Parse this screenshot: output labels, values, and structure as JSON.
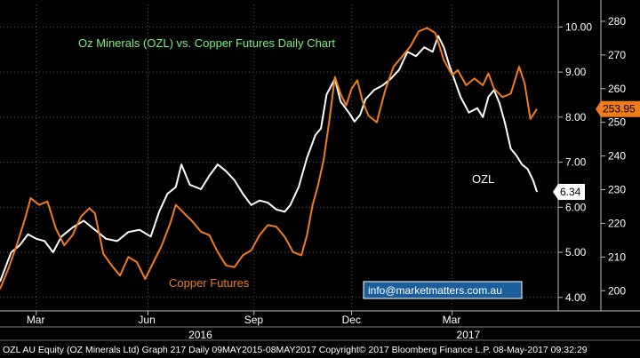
{
  "chart_data": {
    "type": "line",
    "title": "Oz Minerals (OZL) vs. Copper Futures Daily Chart",
    "left_axis": {
      "ticks": [
        "4.00",
        "5.00",
        "6.00",
        "7.00",
        "8.00",
        "9.00",
        "10.00"
      ],
      "ylim": [
        3.7,
        10.5
      ]
    },
    "right_axis": {
      "ticks": [
        "200",
        "210",
        "220",
        "230",
        "240",
        "250",
        "260",
        "270",
        "280"
      ],
      "ylim": [
        194,
        285
      ]
    },
    "x_ticks": [
      {
        "label": "Mar",
        "pos": 0.065
      },
      {
        "label": "Jun",
        "pos": 0.265
      },
      {
        "label": "Sep",
        "pos": 0.455
      },
      {
        "label": "Dec",
        "pos": 0.63
      },
      {
        "label": "Mar",
        "pos": 0.81
      }
    ],
    "year_labels": [
      {
        "label": "2016",
        "pos": 0.36
      },
      {
        "label": "2017",
        "pos": 0.84
      }
    ],
    "series": [
      {
        "name": "OZL",
        "color": "#ffffff",
        "axis": "left",
        "last_value": "6.34",
        "points": [
          [
            0.0,
            4.35
          ],
          [
            0.02,
            5.0
          ],
          [
            0.035,
            5.15
          ],
          [
            0.05,
            5.4
          ],
          [
            0.065,
            5.3
          ],
          [
            0.08,
            5.25
          ],
          [
            0.095,
            5.0
          ],
          [
            0.11,
            5.35
          ],
          [
            0.13,
            5.55
          ],
          [
            0.15,
            5.7
          ],
          [
            0.17,
            5.5
          ],
          [
            0.19,
            5.3
          ],
          [
            0.21,
            5.25
          ],
          [
            0.23,
            5.45
          ],
          [
            0.25,
            5.5
          ],
          [
            0.27,
            5.35
          ],
          [
            0.285,
            5.9
          ],
          [
            0.3,
            6.3
          ],
          [
            0.315,
            6.45
          ],
          [
            0.325,
            6.95
          ],
          [
            0.34,
            6.5
          ],
          [
            0.36,
            6.4
          ],
          [
            0.375,
            6.7
          ],
          [
            0.39,
            6.95
          ],
          [
            0.405,
            6.8
          ],
          [
            0.42,
            6.6
          ],
          [
            0.435,
            6.3
          ],
          [
            0.45,
            6.05
          ],
          [
            0.465,
            6.15
          ],
          [
            0.48,
            6.1
          ],
          [
            0.495,
            5.95
          ],
          [
            0.51,
            5.9
          ],
          [
            0.52,
            6.05
          ],
          [
            0.535,
            6.45
          ],
          [
            0.55,
            7.1
          ],
          [
            0.565,
            7.6
          ],
          [
            0.575,
            7.75
          ],
          [
            0.585,
            8.5
          ],
          [
            0.6,
            8.85
          ],
          [
            0.61,
            8.35
          ],
          [
            0.625,
            8.1
          ],
          [
            0.635,
            7.9
          ],
          [
            0.645,
            8.05
          ],
          [
            0.655,
            8.4
          ],
          [
            0.67,
            8.6
          ],
          [
            0.685,
            8.7
          ],
          [
            0.7,
            8.85
          ],
          [
            0.715,
            9.05
          ],
          [
            0.73,
            9.45
          ],
          [
            0.745,
            9.35
          ],
          [
            0.76,
            9.55
          ],
          [
            0.775,
            9.45
          ],
          [
            0.785,
            9.8
          ],
          [
            0.795,
            9.55
          ],
          [
            0.805,
            9.15
          ],
          [
            0.815,
            8.8
          ],
          [
            0.825,
            8.45
          ],
          [
            0.84,
            8.1
          ],
          [
            0.855,
            8.2
          ],
          [
            0.865,
            8.0
          ],
          [
            0.875,
            8.45
          ],
          [
            0.885,
            8.6
          ],
          [
            0.895,
            8.3
          ],
          [
            0.905,
            7.85
          ],
          [
            0.915,
            7.3
          ],
          [
            0.925,
            7.15
          ],
          [
            0.935,
            6.95
          ],
          [
            0.945,
            6.85
          ],
          [
            0.955,
            6.6
          ],
          [
            0.962,
            6.34
          ]
        ]
      },
      {
        "name": "Copper Futures",
        "color": "#f07c1c",
        "axis": "right",
        "last_value": "253.95",
        "points": [
          [
            0.0,
            200.5
          ],
          [
            0.015,
            206.5
          ],
          [
            0.03,
            213.5
          ],
          [
            0.045,
            221.5
          ],
          [
            0.055,
            227.5
          ],
          [
            0.07,
            225.5
          ],
          [
            0.085,
            226.5
          ],
          [
            0.1,
            218.5
          ],
          [
            0.115,
            213.5
          ],
          [
            0.13,
            216.5
          ],
          [
            0.145,
            222.0
          ],
          [
            0.16,
            224.5
          ],
          [
            0.17,
            223.0
          ],
          [
            0.185,
            211.0
          ],
          [
            0.2,
            207.5
          ],
          [
            0.215,
            204.5
          ],
          [
            0.23,
            210.0
          ],
          [
            0.245,
            208.5
          ],
          [
            0.26,
            203.5
          ],
          [
            0.275,
            208.5
          ],
          [
            0.29,
            213.5
          ],
          [
            0.305,
            220.0
          ],
          [
            0.315,
            225.5
          ],
          [
            0.33,
            223.0
          ],
          [
            0.345,
            220.5
          ],
          [
            0.36,
            217.5
          ],
          [
            0.375,
            216.5
          ],
          [
            0.39,
            211.5
          ],
          [
            0.405,
            207.5
          ],
          [
            0.42,
            207.0
          ],
          [
            0.435,
            210.5
          ],
          [
            0.45,
            212.0
          ],
          [
            0.465,
            216.5
          ],
          [
            0.48,
            219.5
          ],
          [
            0.495,
            219.0
          ],
          [
            0.51,
            216.0
          ],
          [
            0.525,
            211.5
          ],
          [
            0.54,
            210.5
          ],
          [
            0.55,
            216.5
          ],
          [
            0.56,
            225.5
          ],
          [
            0.57,
            231.5
          ],
          [
            0.58,
            239.0
          ],
          [
            0.59,
            250.5
          ],
          [
            0.6,
            263.5
          ],
          [
            0.61,
            258.5
          ],
          [
            0.62,
            255.0
          ],
          [
            0.63,
            260.0
          ],
          [
            0.64,
            262.5
          ],
          [
            0.65,
            256.0
          ],
          [
            0.66,
            252.0
          ],
          [
            0.675,
            250.0
          ],
          [
            0.69,
            259.5
          ],
          [
            0.705,
            266.5
          ],
          [
            0.72,
            269.5
          ],
          [
            0.735,
            272.5
          ],
          [
            0.75,
            277.0
          ],
          [
            0.765,
            278.0
          ],
          [
            0.78,
            276.5
          ],
          [
            0.795,
            268.5
          ],
          [
            0.81,
            264.0
          ],
          [
            0.82,
            265.5
          ],
          [
            0.835,
            261.0
          ],
          [
            0.85,
            263.0
          ],
          [
            0.865,
            261.0
          ],
          [
            0.875,
            264.5
          ],
          [
            0.885,
            260.0
          ],
          [
            0.9,
            257.5
          ],
          [
            0.915,
            258.5
          ],
          [
            0.93,
            266.5
          ],
          [
            0.94,
            261.5
          ],
          [
            0.95,
            251.0
          ],
          [
            0.962,
            253.95
          ]
        ]
      }
    ],
    "annotations": {
      "ozl_label": "OZL",
      "copper_label": "Copper Futures"
    },
    "watermark_link": "info@marketmatters.com.au",
    "footer": "OZL AU Equity (OZ Minerals Ltd) Graph 217  Daily 09MAY2015-08MAY2017 Copyright© 2017 Bloomberg Finance L.P. 08-May-2017 09:32:29"
  }
}
